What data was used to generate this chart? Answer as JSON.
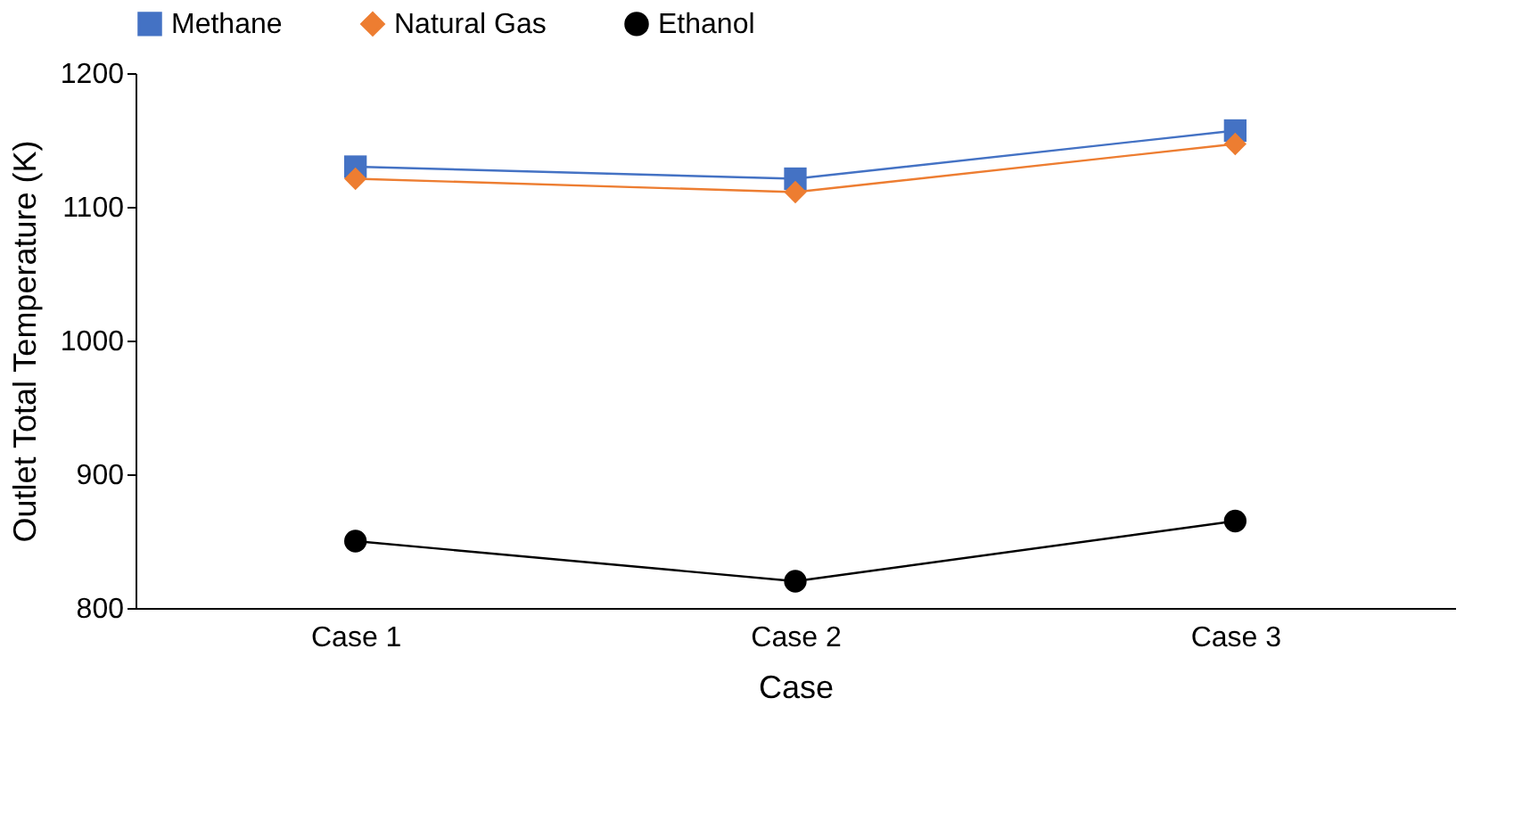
{
  "chart_data": {
    "type": "line",
    "xlabel": "Case",
    "ylabel": "Outlet  Total Temperature (K)",
    "categories": [
      "Case 1",
      "Case 2",
      "Case 3"
    ],
    "series": [
      {
        "name": "Methane",
        "color": "#4472c4",
        "marker": "square",
        "values": [
          1130,
          1121,
          1157
        ]
      },
      {
        "name": "Natural Gas",
        "color": "#ed7d31",
        "marker": "diamond",
        "values": [
          1121,
          1111,
          1147
        ]
      },
      {
        "name": "Ethanol",
        "color": "#000000",
        "marker": "circle",
        "values": [
          850,
          820,
          865
        ]
      }
    ],
    "ylim": [
      800,
      1200
    ],
    "yticks": [
      800,
      900,
      1000,
      1100,
      1200
    ],
    "grid": false,
    "legend": "top",
    "line_style": "solid"
  }
}
